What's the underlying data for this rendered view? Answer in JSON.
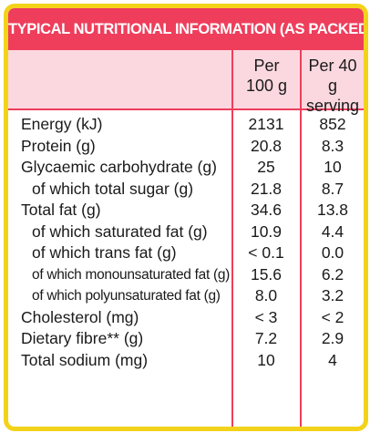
{
  "title": "TYPICAL NUTRITIONAL INFORMATION (AS PACKED)",
  "columns": {
    "per100_line1": "Per",
    "per100_line2": "100 g",
    "perServing_line1": "Per 40 g",
    "perServing_line2": "serving"
  },
  "rows": [
    {
      "label": "Energy (kJ)",
      "per100": "2131",
      "perServing": "852"
    },
    {
      "label": "Protein (g)",
      "per100": "20.8",
      "perServing": "8.3"
    },
    {
      "label": "Glycaemic carbohydrate (g)",
      "per100": "25",
      "perServing": "10"
    },
    {
      "label": "of which total sugar (g)",
      "per100": "21.8",
      "perServing": "8.7"
    },
    {
      "label": "Total fat (g)",
      "per100": "34.6",
      "perServing": "13.8"
    },
    {
      "label": "of which saturated fat (g)",
      "per100": "10.9",
      "perServing": "4.4"
    },
    {
      "label": "of which trans fat (g)",
      "per100": "< 0.1",
      "perServing": "0.0"
    },
    {
      "label": "of which monounsaturated fat (g)",
      "per100": "15.6",
      "perServing": "6.2"
    },
    {
      "label": "of which polyunsaturated fat (g)",
      "per100": "8.0",
      "perServing": "3.2"
    },
    {
      "label": "Cholesterol (mg)",
      "per100": "< 3",
      "perServing": "< 2"
    },
    {
      "label": "Dietary fibre** (g)",
      "per100": "7.2",
      "perServing": "2.9"
    },
    {
      "label": "Total sodium (mg)",
      "per100": "10",
      "perServing": "4"
    }
  ]
}
